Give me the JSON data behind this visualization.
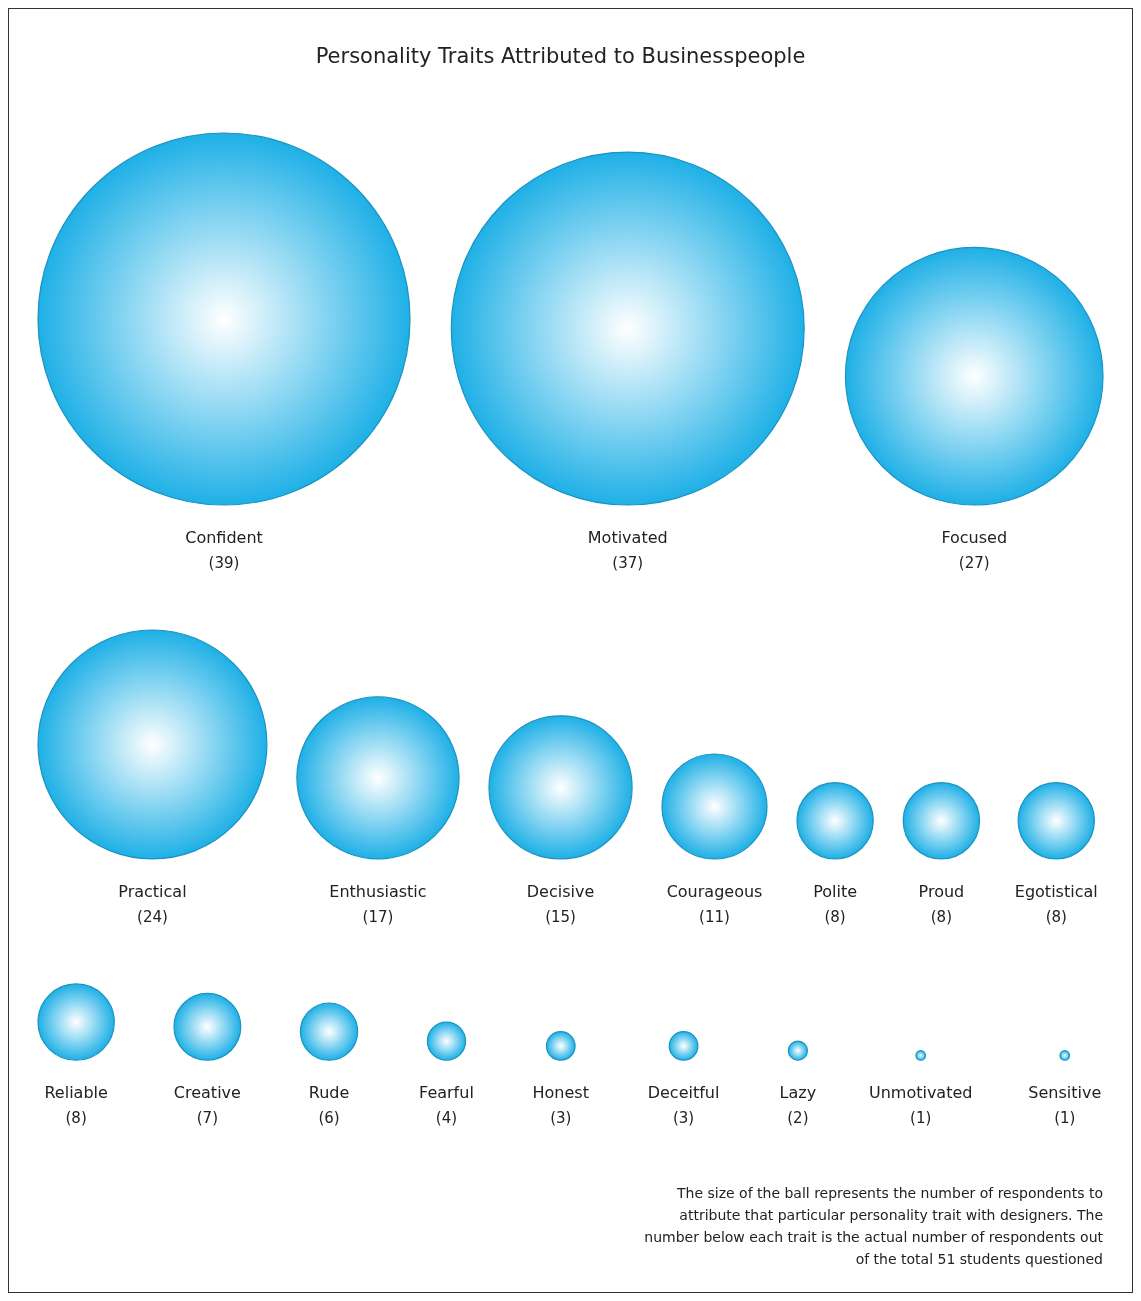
{
  "chart_data": {
    "type": "other",
    "title": "Personality Traits Attributed to Businesspeople",
    "categories": [
      "Confident",
      "Motivated",
      "Focused",
      "Practical",
      "Enthusiastic",
      "Decisive",
      "Courageous",
      "Polite",
      "Proud",
      "Egotistical",
      "Reliable",
      "Creative",
      "Rude",
      "Fearful",
      "Honest",
      "Deceitful",
      "Lazy",
      "Unmotivated",
      "Sensitive"
    ],
    "values": [
      39,
      37,
      27,
      24,
      17,
      15,
      11,
      8,
      8,
      8,
      8,
      7,
      6,
      4,
      3,
      3,
      2,
      1,
      1
    ],
    "color": "#1fb0e6",
    "value_labels": [
      "(39)",
      "(37)",
      "(27)",
      "(24)",
      "(17)",
      "(15)",
      "(11)",
      "(8)",
      "(8)",
      "(8)",
      "(8)",
      "(7)",
      "(6)",
      "(4)",
      "(3)",
      "(3)",
      "(2)",
      "(1)",
      "(1)"
    ],
    "annotations": [
      "The size of the ball represents the number of respondents to attribute that particular personality trait with designers. The number below each trait is the actual number of respondents out of the total 51 students questioned"
    ]
  }
}
